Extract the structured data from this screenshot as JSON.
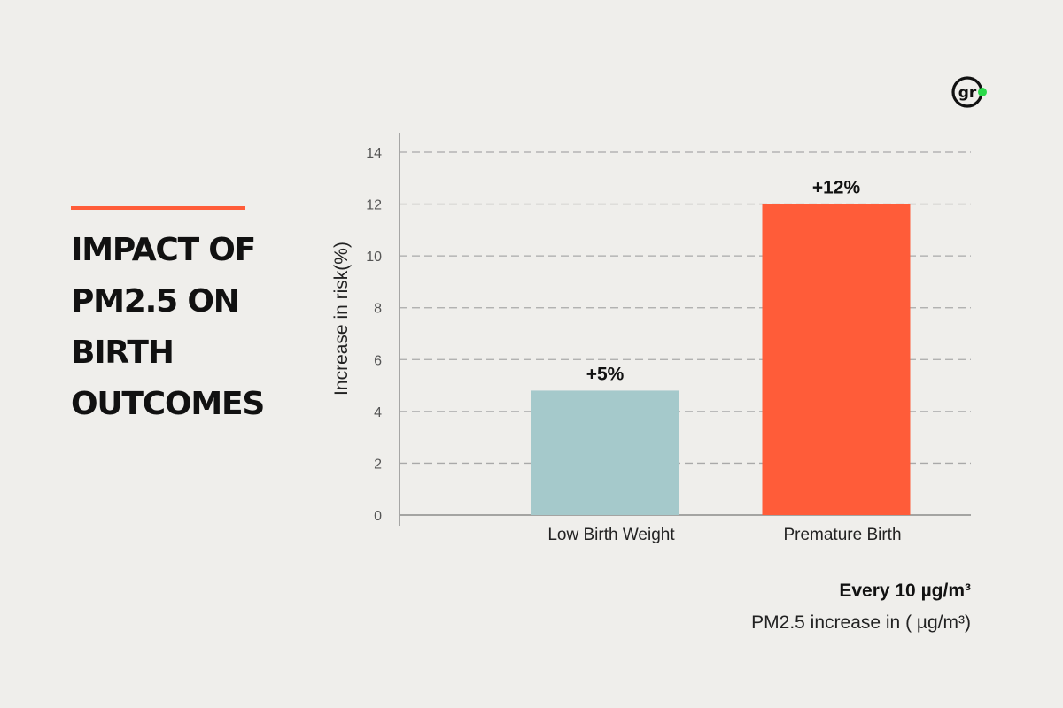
{
  "title_lines": [
    "IMPACT OF",
    "PM2.5 ON",
    "BIRTH",
    "OUTCOMES"
  ],
  "logo": {
    "text": "gr",
    "dot_color": "#2bd94a"
  },
  "colors": {
    "accent": "#ff5c39",
    "teal": "#a5c9cb",
    "orange": "#ff5c39"
  },
  "chart_data": {
    "type": "bar",
    "categories": [
      "Low Birth Weight",
      "Premature Birth"
    ],
    "values": [
      4.8,
      12
    ],
    "data_labels": [
      "+5%",
      "+12%"
    ],
    "bar_colors": [
      "#a5c9cb",
      "#ff5c39"
    ],
    "ylabel": "Increase in risk(%)",
    "ylim": [
      0,
      14
    ],
    "yticks": [
      0,
      2,
      4,
      6,
      8,
      10,
      12,
      14
    ],
    "grid": true
  },
  "notes": {
    "bold": "Every 10 µg/m³",
    "regular": "PM2.5 increase in ( µg/m³)"
  }
}
